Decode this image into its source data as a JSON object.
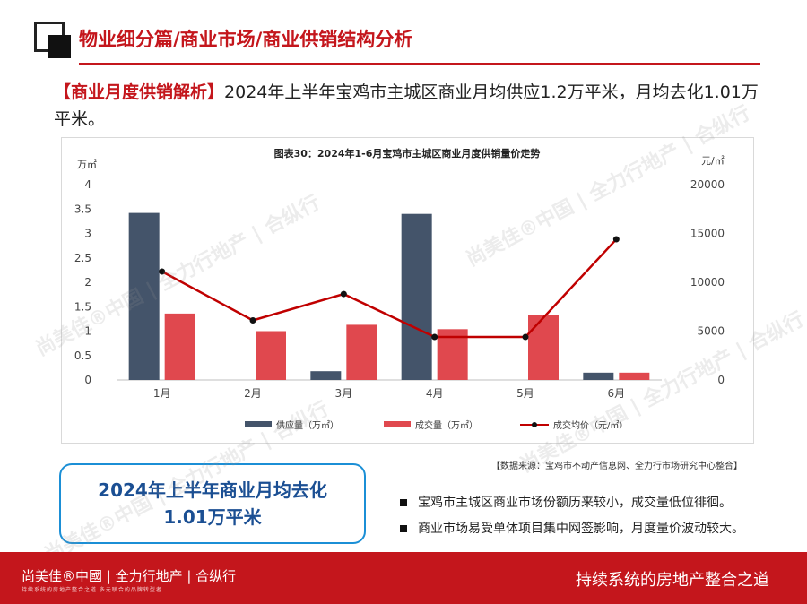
{
  "header": {
    "section_title": "物业细分篇/商业市场/商业供销结构分析",
    "headline_tag": "【商业月度供销解析】",
    "headline_text": "2024年上半年宝鸡市主城区商业月均供应1.2万平米，月均去化1.01万平米。"
  },
  "chart_data": {
    "type": "bar",
    "title": "图表30：2024年1-6月宝鸡市主城区商业月度供销量价走势",
    "categories": [
      "1月",
      "2月",
      "3月",
      "4月",
      "5月",
      "6月"
    ],
    "y_left": {
      "unit": "万㎡",
      "ylim": [
        0,
        4
      ],
      "ticks": [
        "0",
        "0.5",
        "1",
        "1.5",
        "2",
        "2.5",
        "3",
        "3.5",
        "4"
      ]
    },
    "y_right": {
      "unit": "元/㎡",
      "ylim": [
        0,
        20000
      ],
      "ticks": [
        "0",
        "5000",
        "10000",
        "15000",
        "20000"
      ]
    },
    "series": [
      {
        "name": "供应量（万㎡）",
        "kind": "bar",
        "axis": "left",
        "color": "#44546a",
        "values": [
          3.42,
          0,
          0.18,
          3.4,
          0,
          0.15
        ]
      },
      {
        "name": "成交量（万㎡）",
        "kind": "bar",
        "axis": "left",
        "color": "#e0484e",
        "values": [
          1.36,
          1.0,
          1.13,
          1.04,
          1.33,
          0.15
        ]
      },
      {
        "name": "成交均价（元/㎡）",
        "kind": "line",
        "axis": "right",
        "color": "#c00000",
        "values": [
          11100,
          6100,
          8800,
          4400,
          4400,
          14400
        ]
      }
    ],
    "grid": false,
    "legend": "bottom"
  },
  "source_note": "【数据来源：宝鸡市不动产信息网、全力行市场研究中心整合】",
  "summary": {
    "line1": "2024年上半年商业月均去化",
    "line2": "1.01万平米"
  },
  "bullets": [
    "宝鸡市主城区商业市场份额历来较小，成交量低位徘徊。",
    "商业市场易受单体项目集中网签影响，月度量价波动较大。"
  ],
  "footer": {
    "brand": "尚美佳®中國 | 全力行地产 | 合纵行",
    "brand_sub": "持续系统的房地产整合之道    多元联合的品牌转型者",
    "slogan": "持续系统的房地产整合之道"
  },
  "watermark": "尚美佳®中国 | 全力行地产 | 合纵行",
  "colors": {
    "accent": "#c4161c",
    "supply": "#44546a",
    "deal": "#e0484e",
    "price": "#c00000",
    "box": "#1b8fd6"
  }
}
